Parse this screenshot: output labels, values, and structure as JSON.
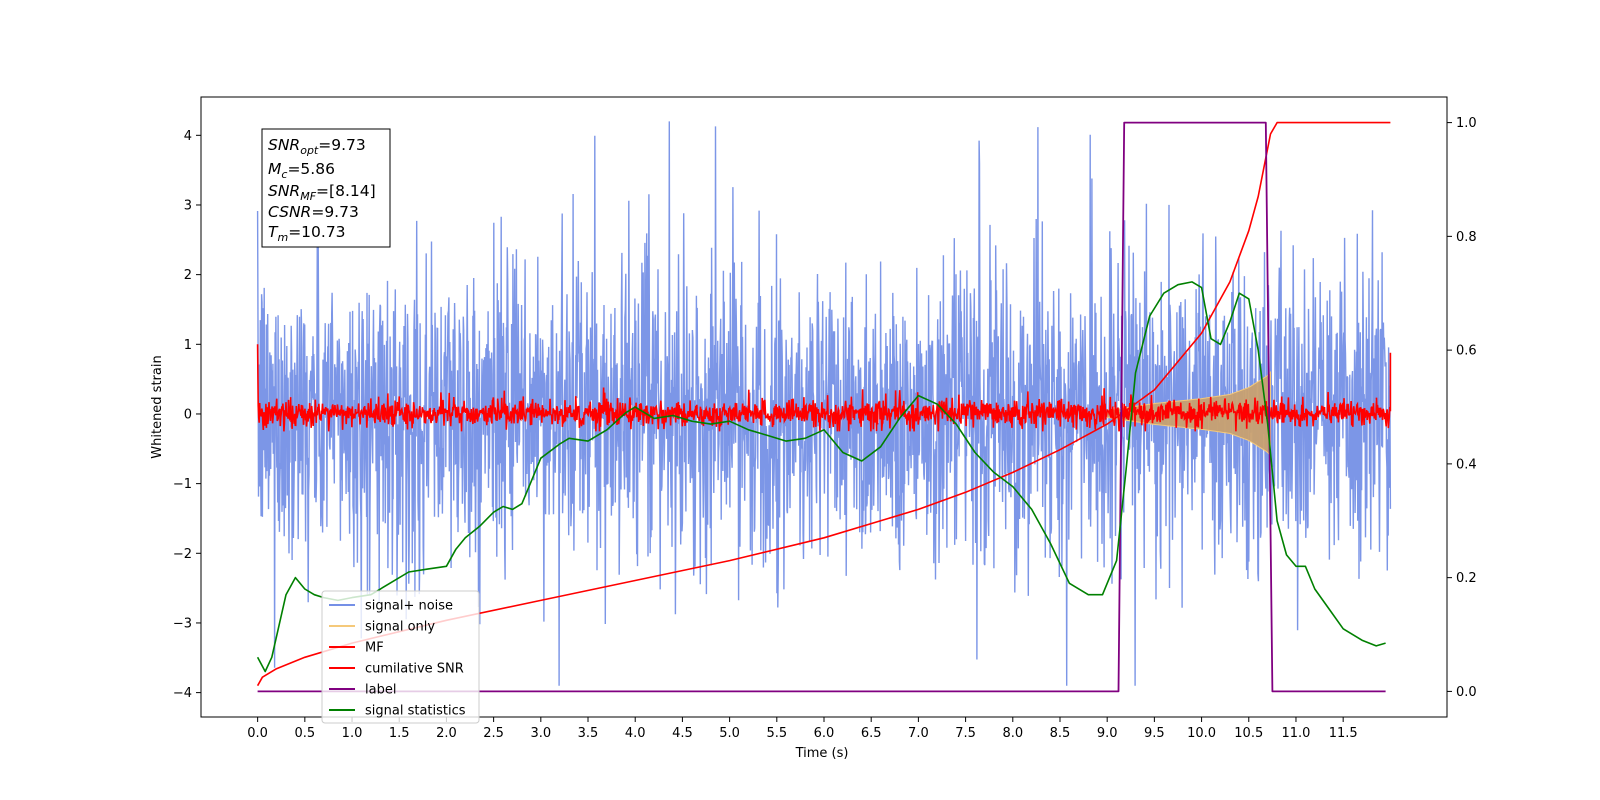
{
  "chart_data": {
    "type": "line",
    "xlabel": "Time (s)",
    "ylabel": "Whitened strain",
    "xlim": [
      -0.6,
      12.6
    ],
    "ylim": [
      -4.35,
      4.55
    ],
    "y2lim": [
      -0.045,
      1.045
    ],
    "grid": false,
    "legend_position": "lower-left",
    "x_ticks": [
      "0.0",
      "0.5",
      "1.0",
      "1.5",
      "2.0",
      "2.5",
      "3.0",
      "3.5",
      "4.0",
      "4.5",
      "5.0",
      "5.5",
      "6.0",
      "6.5",
      "7.0",
      "7.5",
      "8.0",
      "8.5",
      "9.0",
      "9.5",
      "10.0",
      "10.5",
      "11.0",
      "11.5"
    ],
    "y_ticks": [
      "−4",
      "−3",
      "−2",
      "−1",
      "0",
      "1",
      "2",
      "3",
      "4"
    ],
    "y2_ticks": [
      "0.0",
      "0.2",
      "0.4",
      "0.6",
      "0.8",
      "1.0"
    ],
    "annotation": {
      "snr_opt": {
        "base": "SNR",
        "sub": "opt",
        "value": "=9.73"
      },
      "mc": {
        "base": "M",
        "sub": "c",
        "value": "=5.86"
      },
      "snr_mf": {
        "base": "SNR",
        "sub": "MF",
        "value": "=[8.14]"
      },
      "csnr": {
        "base": "CSNR",
        "sub": "",
        "value": "=9.73"
      },
      "tm": {
        "base": "T",
        "sub": "m",
        "value": "=10.73"
      }
    },
    "series": [
      {
        "name": "signal+ noise",
        "color": "#7590e6",
        "axis": "left",
        "description_values": {
          "x_range": [
            0.0,
            12.0
          ],
          "noise_sigma": 1.0
        }
      },
      {
        "name": "signal only",
        "color": "#f5c97a",
        "axis": "left",
        "envelope": {
          "x": [
            9.0,
            9.5,
            10.0,
            10.3,
            10.5,
            10.7,
            10.73
          ],
          "amp": [
            0.05,
            0.15,
            0.22,
            0.28,
            0.38,
            0.55,
            0.6
          ]
        }
      },
      {
        "name": "MF",
        "color": "#ff0000",
        "axis": "left",
        "description_values": {
          "x_range": [
            0.0,
            12.0
          ],
          "center": 0.0,
          "spread": 0.2
        }
      },
      {
        "name": "cumilative SNR",
        "color": "#ff0000",
        "axis": "right",
        "x": [
          0.0,
          0.05,
          0.2,
          0.5,
          1.0,
          2.0,
          3.0,
          4.0,
          5.0,
          6.0,
          7.0,
          7.5,
          8.0,
          8.5,
          9.0,
          9.5,
          10.0,
          10.3,
          10.5,
          10.6,
          10.73,
          10.8,
          12.0
        ],
        "y": [
          0.01,
          0.025,
          0.04,
          0.06,
          0.085,
          0.125,
          0.16,
          0.195,
          0.23,
          0.27,
          0.32,
          0.35,
          0.385,
          0.425,
          0.47,
          0.53,
          0.63,
          0.72,
          0.81,
          0.87,
          0.98,
          1.0,
          1.0
        ]
      },
      {
        "name": "label",
        "color": "#800080",
        "axis": "right",
        "x": [
          0.0,
          9.12,
          9.18,
          10.68,
          10.75,
          11.95
        ],
        "y": [
          0.0,
          0.0,
          1.0,
          1.0,
          0.0,
          0.0
        ]
      },
      {
        "name": "signal statistics",
        "color": "#008000",
        "axis": "right",
        "x": [
          0.0,
          0.08,
          0.15,
          0.3,
          0.4,
          0.5,
          0.6,
          0.7,
          0.85,
          1.0,
          1.2,
          1.4,
          1.6,
          1.8,
          2.0,
          2.1,
          2.2,
          2.35,
          2.5,
          2.6,
          2.7,
          2.8,
          2.9,
          3.0,
          3.2,
          3.3,
          3.5,
          3.7,
          3.9,
          4.0,
          4.2,
          4.4,
          4.6,
          4.8,
          5.0,
          5.2,
          5.4,
          5.6,
          5.8,
          6.0,
          6.2,
          6.4,
          6.6,
          6.8,
          7.0,
          7.2,
          7.4,
          7.6,
          7.8,
          8.0,
          8.2,
          8.4,
          8.6,
          8.8,
          8.95,
          9.1,
          9.2,
          9.3,
          9.45,
          9.6,
          9.75,
          9.9,
          10.0,
          10.1,
          10.2,
          10.3,
          10.4,
          10.5,
          10.6,
          10.7,
          10.8,
          10.9,
          11.0,
          11.1,
          11.2,
          11.35,
          11.5,
          11.7,
          11.85,
          11.95
        ],
        "y": [
          0.06,
          0.035,
          0.06,
          0.17,
          0.2,
          0.18,
          0.17,
          0.165,
          0.16,
          0.165,
          0.17,
          0.19,
          0.21,
          0.215,
          0.22,
          0.25,
          0.27,
          0.29,
          0.315,
          0.325,
          0.32,
          0.33,
          0.37,
          0.41,
          0.435,
          0.445,
          0.44,
          0.46,
          0.49,
          0.5,
          0.48,
          0.485,
          0.475,
          0.47,
          0.475,
          0.46,
          0.45,
          0.44,
          0.445,
          0.46,
          0.42,
          0.405,
          0.43,
          0.48,
          0.52,
          0.505,
          0.47,
          0.42,
          0.385,
          0.36,
          0.32,
          0.26,
          0.19,
          0.17,
          0.17,
          0.23,
          0.39,
          0.56,
          0.66,
          0.7,
          0.715,
          0.72,
          0.71,
          0.62,
          0.61,
          0.65,
          0.7,
          0.69,
          0.6,
          0.47,
          0.3,
          0.24,
          0.22,
          0.22,
          0.18,
          0.145,
          0.11,
          0.09,
          0.08,
          0.085
        ]
      }
    ]
  }
}
